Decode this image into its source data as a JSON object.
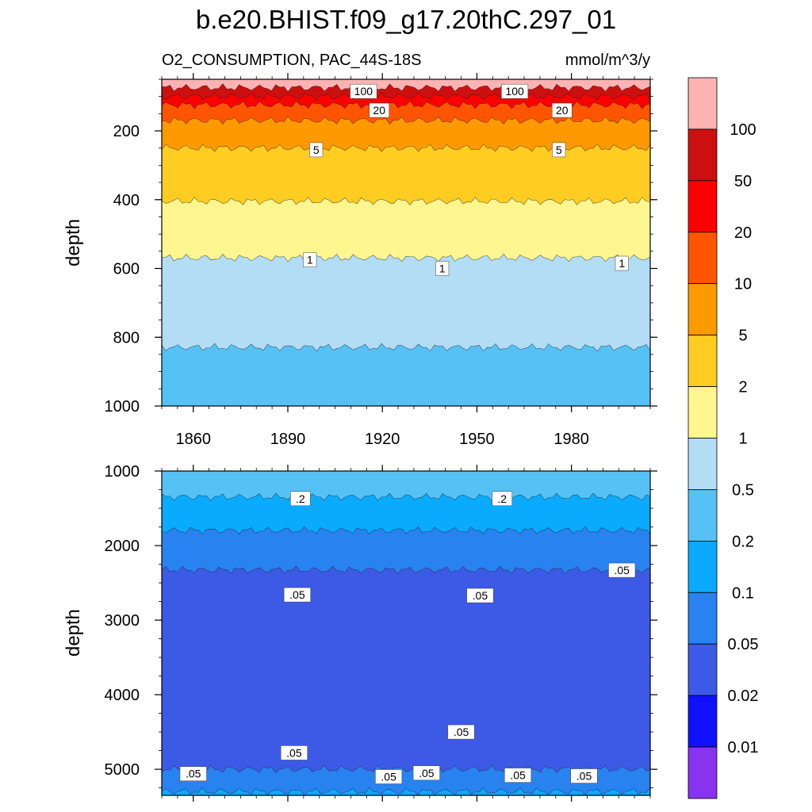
{
  "title": "b.e20.BHIST.f09_g17.20thC.297_01",
  "subtitle_left": "O2_CONSUMPTION, PAC_44S-18S",
  "subtitle_right": "mmol/m^3/y",
  "ylabel_top": "depth",
  "ylabel_bottom": "depth",
  "colors": {
    "frame": "#000000",
    "label_box": "#ffffff"
  },
  "chart_data": [
    {
      "type": "contour",
      "panel": "top",
      "xlim": [
        1850,
        2005
      ],
      "ylim": [
        1000,
        50
      ],
      "x_ticks": [
        1860,
        1890,
        1920,
        1950,
        1980
      ],
      "y_ticks": [
        200,
        400,
        600,
        800,
        1000
      ],
      "bands": [
        {
          "level_range": "100+",
          "color": "#ffb3b3",
          "top": 50,
          "bottom": 75
        },
        {
          "level_range": "50-100",
          "color": "#cc1010",
          "top": 75,
          "bottom": 100
        },
        {
          "level_range": "20-50",
          "color": "#ff0000",
          "top": 100,
          "bottom": 125
        },
        {
          "level_range": "10-20",
          "color": "#ff5500",
          "top": 125,
          "bottom": 170
        },
        {
          "level_range": "5-10",
          "color": "#ff9900",
          "top": 170,
          "bottom": 250
        },
        {
          "level_range": "2-5",
          "color": "#ffcc22",
          "top": 250,
          "bottom": 405
        },
        {
          "level_range": "1-2",
          "color": "#fff68f",
          "top": 405,
          "bottom": 570
        },
        {
          "level_range": "0.5-1",
          "color": "#b3dcf5",
          "top": 570,
          "bottom": 830
        },
        {
          "level_range": "0.2-0.5",
          "color": "#56c1f5",
          "top": 830,
          "bottom": 1000
        }
      ],
      "contour_labels": [
        {
          "text": "100",
          "x": 1914,
          "depth": 85
        },
        {
          "text": "100",
          "x": 1962,
          "depth": 85
        },
        {
          "text": "20",
          "x": 1919,
          "depth": 140
        },
        {
          "text": "20",
          "x": 1977,
          "depth": 140
        },
        {
          "text": "5",
          "x": 1899,
          "depth": 255
        },
        {
          "text": "5",
          "x": 1976,
          "depth": 255
        },
        {
          "text": "1",
          "x": 1897,
          "depth": 575
        },
        {
          "text": "1",
          "x": 1939,
          "depth": 600
        },
        {
          "text": "1",
          "x": 1996,
          "depth": 585
        }
      ]
    },
    {
      "type": "contour",
      "panel": "bottom",
      "xlim": [
        1850,
        2005
      ],
      "ylim": [
        5350,
        1000
      ],
      "x_ticks": [
        1860,
        1890,
        1920,
        1950,
        1980
      ],
      "y_ticks": [
        1000,
        2000,
        3000,
        4000,
        5000
      ],
      "bands": [
        {
          "level_range": "0.2-0.5",
          "color": "#56c1f5",
          "top": 1000,
          "bottom": 1350
        },
        {
          "level_range": "0.1-0.2",
          "color": "#0aaaff",
          "top": 1350,
          "bottom": 1800
        },
        {
          "level_range": "0.05-0.1",
          "color": "#2882f0",
          "top": 1800,
          "bottom": 2330
        },
        {
          "level_range": "0.02-0.05",
          "color": "#3c5ae6",
          "top": 2330,
          "bottom": 5000
        },
        {
          "level_range": "0.05-0.1",
          "color": "#2882f0",
          "top": 5000,
          "bottom": 5300
        },
        {
          "level_range": "0.1-0.2",
          "color": "#0aaaff",
          "top": 5300,
          "bottom": 5350
        }
      ],
      "contour_labels": [
        {
          "text": ".2",
          "x": 1894,
          "depth": 1370
        },
        {
          "text": ".2",
          "x": 1958,
          "depth": 1370
        },
        {
          "text": ".05",
          "x": 1996,
          "depth": 2330
        },
        {
          "text": ".05",
          "x": 1893,
          "depth": 2660
        },
        {
          "text": ".05",
          "x": 1951,
          "depth": 2670
        },
        {
          "text": ".05",
          "x": 1945,
          "depth": 4500
        },
        {
          "text": ".05",
          "x": 1892,
          "depth": 4780
        },
        {
          "text": ".05",
          "x": 1860,
          "depth": 5060
        },
        {
          "text": ".05",
          "x": 1922,
          "depth": 5100
        },
        {
          "text": ".05",
          "x": 1934,
          "depth": 5050
        },
        {
          "text": ".05",
          "x": 1963,
          "depth": 5080
        },
        {
          "text": ".05",
          "x": 1984,
          "depth": 5090
        }
      ]
    }
  ],
  "colorbar": {
    "labels": [
      "100",
      "50",
      "20",
      "10",
      "5",
      "2",
      "1",
      "0.5",
      "0.2",
      "0.1",
      "0.05",
      "0.02",
      "0.01"
    ],
    "colors": [
      "#ffb3b3",
      "#cc1010",
      "#ff0000",
      "#ff5500",
      "#ff9900",
      "#ffcc22",
      "#fff68f",
      "#b3dcf5",
      "#56c1f5",
      "#0aaaff",
      "#2882f0",
      "#3c5ae6",
      "#1010ff",
      "#8833ee"
    ]
  }
}
